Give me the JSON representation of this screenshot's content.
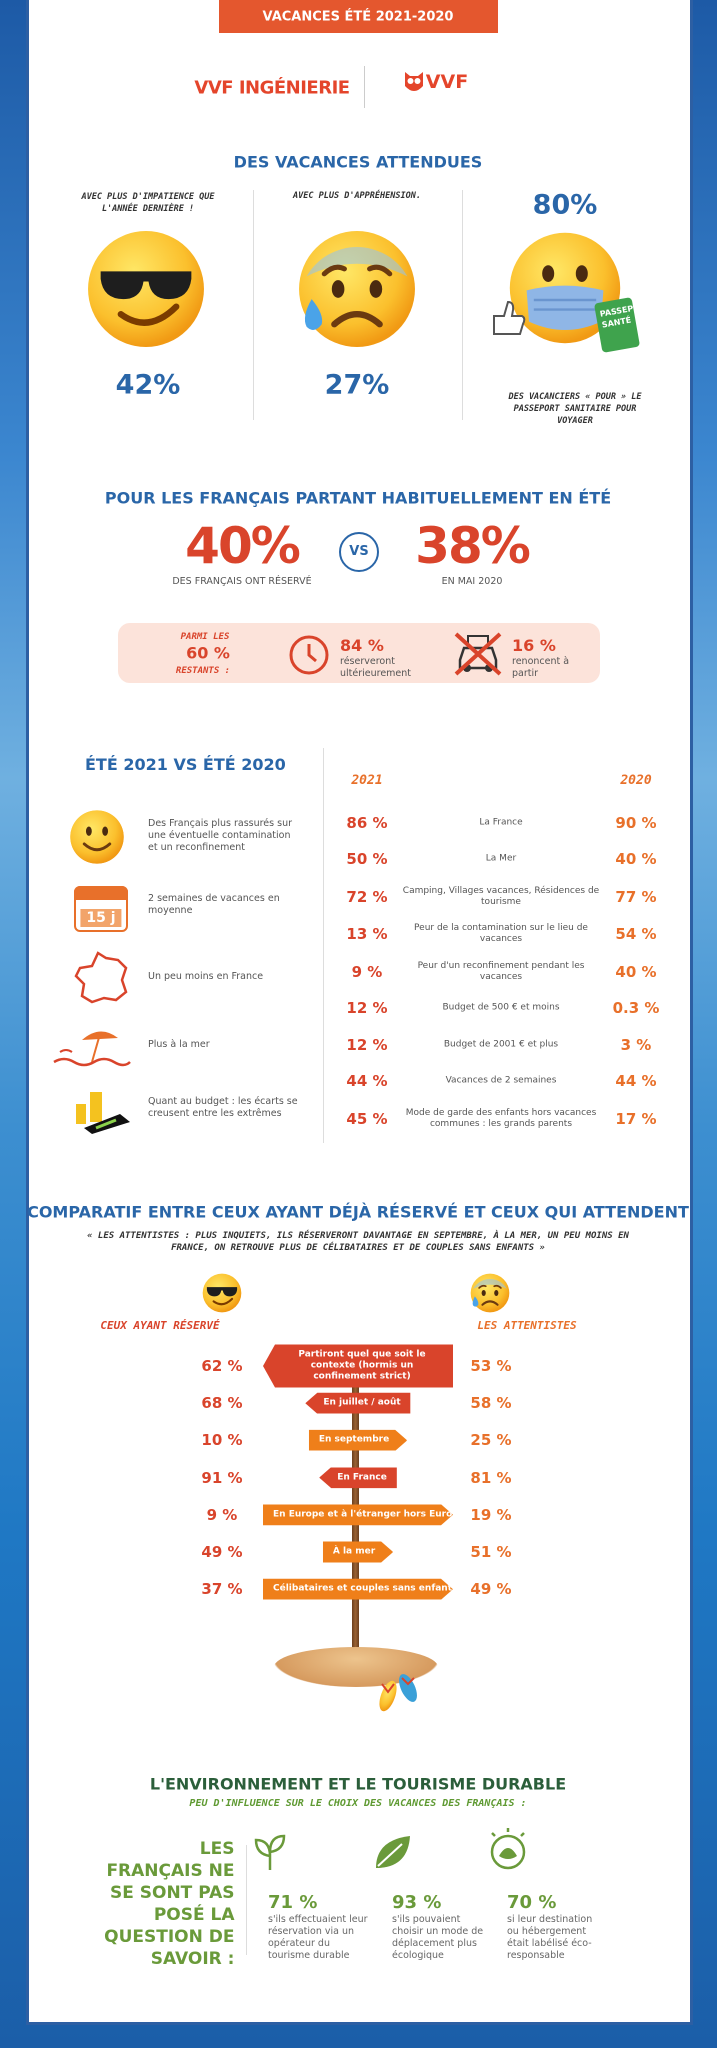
{
  "header": {
    "banner": "VACANCES ÉTÉ 2021-2020",
    "logos": [
      "VVF INGÉNIERIE",
      "VVF"
    ]
  },
  "section1": {
    "title": "DES VACANCES ATTENDUES",
    "items": [
      {
        "caption": "AVEC PLUS D'IMPATIENCE QUE L'ANNÉE DERNIÈRE !",
        "value": "42%"
      },
      {
        "caption": "AVEC PLUS D'APPRÉHENSION.",
        "value": "27%"
      },
      {
        "value": "80%",
        "badge": "PASSEPORT SANTÉ",
        "caption": "DES VACANCIERS « POUR » LE PASSEPORT SANITAIRE POUR VOYAGER"
      }
    ]
  },
  "section2": {
    "title": "POUR LES FRANÇAIS PARTANT HABITUELLEMENT EN ÉTÉ",
    "left": {
      "value": "40%",
      "caption": "DES FRANÇAIS ONT RÉSERVÉ"
    },
    "vs": "VS",
    "right": {
      "value": "38%",
      "caption": "EN MAI 2020"
    },
    "box": {
      "label": [
        "PARMI LES",
        "60 %",
        "RESTANTS :"
      ],
      "items": [
        {
          "value": "84 %",
          "text": "réserveront ultérieurement"
        },
        {
          "value": "16 %",
          "text": "renoncent à partir"
        }
      ]
    }
  },
  "section3": {
    "title": "ÉTÉ 2021 VS ÉTÉ 2020",
    "calendar_label": "15 j",
    "insights": [
      "Des Français plus rassurés sur une éventuelle contamination et un reconfinement",
      "2 semaines de vacances en moyenne",
      "Un peu moins en France",
      "Plus à la mer",
      "Quant au budget : les écarts se creusent entre les extrêmes"
    ],
    "columns": [
      "2021",
      "2020"
    ],
    "rows": [
      [
        "86 %",
        "La France",
        "90 %"
      ],
      [
        "50 %",
        "La Mer",
        "40 %"
      ],
      [
        "72 %",
        "Camping, Villages vacances, Résidences de tourisme",
        "77 %"
      ],
      [
        "13 %",
        "Peur de la contamination sur le lieu de vacances",
        "54 %"
      ],
      [
        "9 %",
        "Peur d'un reconfinement pendant les vacances",
        "40 %"
      ],
      [
        "12 %",
        "Budget de 500 € et moins",
        "0.3 %"
      ],
      [
        "12 %",
        "Budget de 2001 € et plus",
        "3 %"
      ],
      [
        "44 %",
        "Vacances de 2 semaines",
        "44 %"
      ],
      [
        "45 %",
        "Mode de garde des enfants hors vacances communes : les grands parents",
        "17 %"
      ]
    ]
  },
  "section4": {
    "title": "COMPARATIF ENTRE CEUX AYANT DÉJÀ RÉSERVÉ ET CEUX QUI ATTENDENT",
    "subtitle": "« LES ATTENTISTES : PLUS INQUIETS, ILS RÉSERVERONT DAVANTAGE EN SEPTEMBRE, À LA MER, UN PEU MOINS EN FRANCE, ON RETROUVE PLUS DE CÉLIBATAIRES ET DE COUPLES SANS ENFANTS »",
    "groups": [
      "CEUX AYANT RÉSERVÉ",
      "LES ATTENTISTES"
    ],
    "rows": [
      [
        "62 %",
        "Partiront quel que soit le contexte (hormis un confinement strict)",
        "53 %"
      ],
      [
        "68 %",
        "En juillet / août",
        "58 %"
      ],
      [
        "10 %",
        "En septembre",
        "25 %"
      ],
      [
        "91 %",
        "En France",
        "81 %"
      ],
      [
        "9 %",
        "En Europe et à l'étranger hors Europe",
        "19 %"
      ],
      [
        "49 %",
        "À la mer",
        "51 %"
      ],
      [
        "37 %",
        "Célibataires et couples sans enfants",
        "49 %"
      ]
    ]
  },
  "section5": {
    "title": "L'ENVIRONNEMENT ET LE TOURISME DURABLE",
    "subtitle": "PEU D'INFLUENCE SUR LE CHOIX DES VACANCES DES FRANÇAIS :",
    "lead": "LES FRANÇAIS NE SE SONT PAS POSÉ LA QUESTION DE SAVOIR :",
    "items": [
      {
        "value": "71 %",
        "text": "s'ils effectuaient leur réservation via un opérateur du tourisme durable"
      },
      {
        "value": "93 %",
        "text": "s'ils pouvaient choisir un mode de déplacement plus écologique"
      },
      {
        "value": "70 %",
        "text": "si leur destination ou hébergement était labélisé éco-responsable"
      }
    ]
  }
}
